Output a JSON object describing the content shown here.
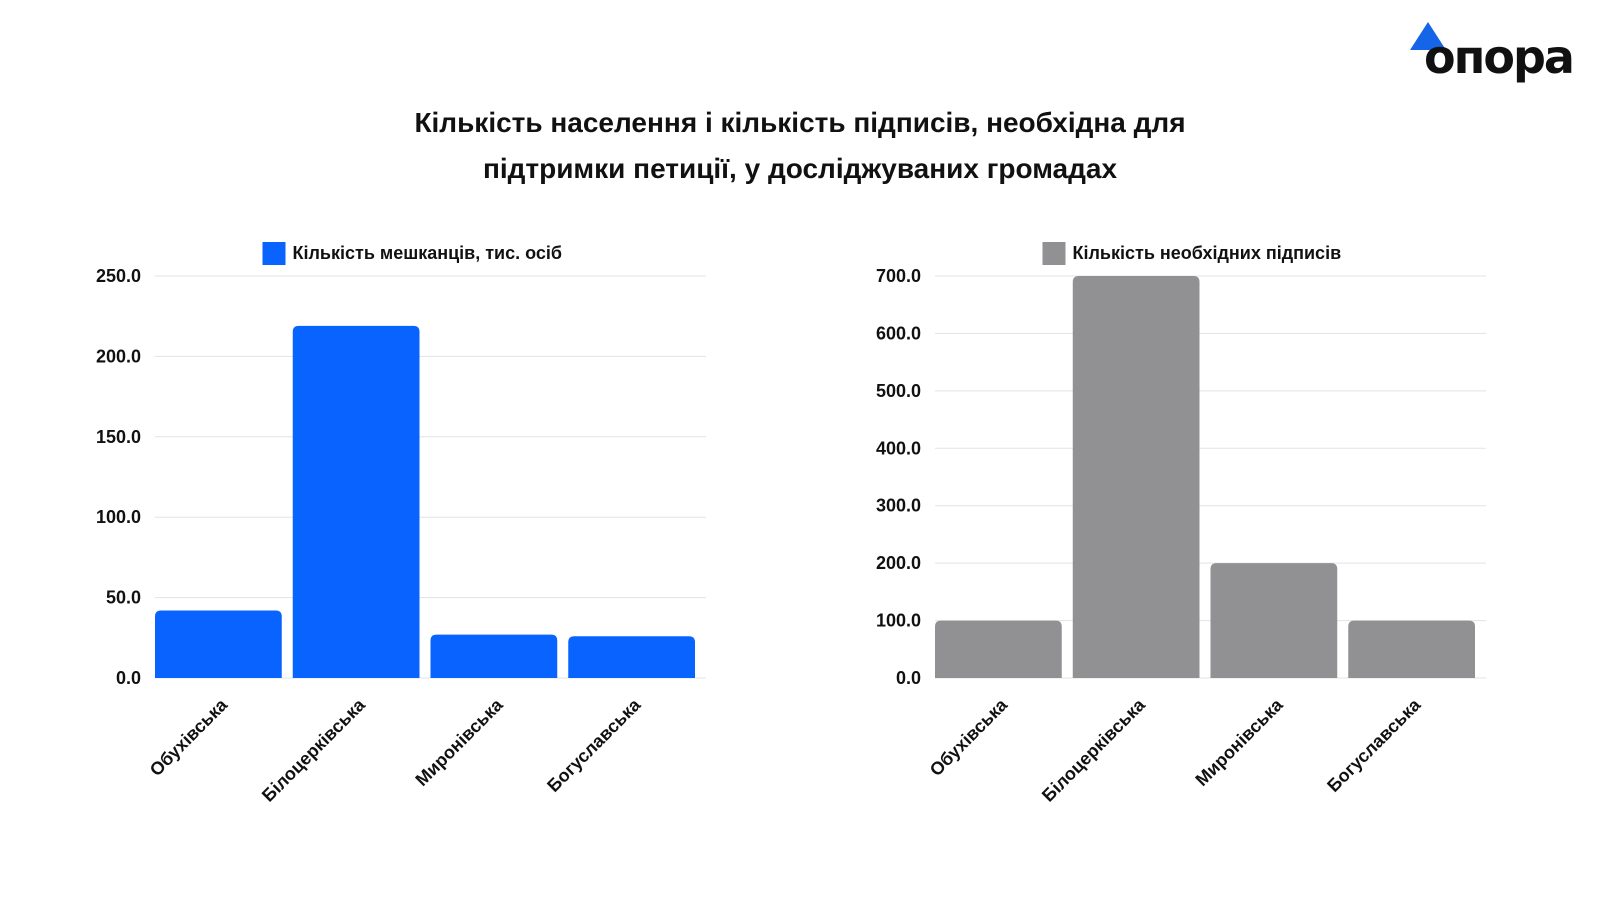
{
  "logo": {
    "text": "опора",
    "accent_color": "#1565e8"
  },
  "title": {
    "line1": "Кількість населення і кількість підписів, необхідна для",
    "line2": "підтримки петиції, у досліджуваних громадах"
  },
  "chart_data": [
    {
      "type": "bar",
      "categories": [
        "Обухівська",
        "Білоцерківська",
        "Миронівська",
        "Богуславська"
      ],
      "series": [
        {
          "name": "Кількість мешканців, тис. осіб",
          "values": [
            42,
            219,
            27,
            26
          ],
          "color": "#0863ff"
        }
      ],
      "ylim": [
        0,
        250
      ],
      "yticks": [
        "0.0",
        "50.0",
        "100.0",
        "150.0",
        "200.0",
        "250.0"
      ],
      "tick_values": [
        0,
        50,
        100,
        150,
        200,
        250
      ],
      "grid": true,
      "legend": "top"
    },
    {
      "type": "bar",
      "categories": [
        "Обухівська",
        "Білоцерківська",
        "Миронівська",
        "Богуславська"
      ],
      "series": [
        {
          "name": "Кількість необхідних підписів",
          "values": [
            100,
            700,
            200,
            100
          ],
          "color": "#919194"
        }
      ],
      "ylim": [
        0,
        700
      ],
      "yticks": [
        "0.0",
        "100.0",
        "200.0",
        "300.0",
        "400.0",
        "500.0",
        "600.0",
        "700.0"
      ],
      "tick_values": [
        0,
        100,
        200,
        300,
        400,
        500,
        600,
        700
      ],
      "grid": true,
      "legend": "top"
    }
  ]
}
